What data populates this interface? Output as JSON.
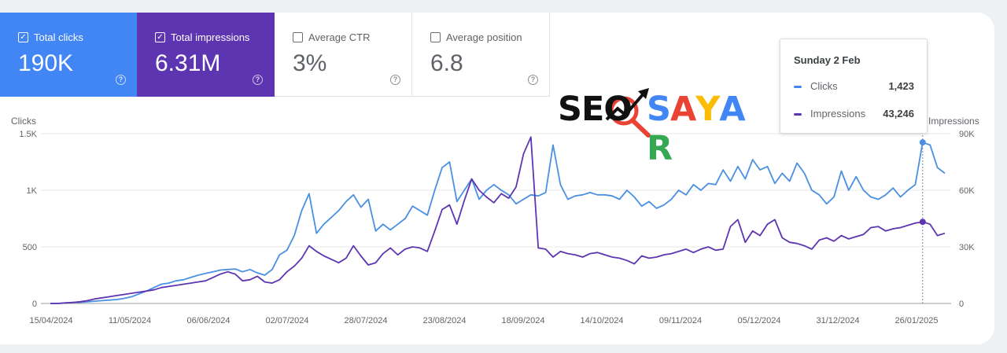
{
  "metrics": [
    {
      "label": "Total clicks",
      "value": "190K",
      "checked": true,
      "color": "#4285f4"
    },
    {
      "label": "Total impressions",
      "value": "6.31M",
      "checked": true,
      "color": "#5e35b1"
    },
    {
      "label": "Average CTR",
      "value": "3%",
      "checked": false
    },
    {
      "label": "Average position",
      "value": "6.8",
      "checked": false
    }
  ],
  "tooltip": {
    "date": "Sunday 2 Feb",
    "clicks_label": "Clicks",
    "clicks_value": "1,423",
    "impressions_label": "Impressions",
    "impressions_value": "43,246"
  },
  "logo": {
    "part1": "SEO",
    "part2": "SAYAR",
    "colors": [
      "#4285f4",
      "#ea4335",
      "#fbbc05",
      "#4285f4",
      "#34a853"
    ]
  },
  "chart_data": {
    "type": "line",
    "x_ticks": [
      "15/04/2024",
      "11/05/2024",
      "06/06/2024",
      "02/07/2024",
      "28/07/2024",
      "23/08/2024",
      "18/09/2024",
      "14/10/2024",
      "09/11/2024",
      "05/12/2024",
      "31/12/2024",
      "26/01/2025"
    ],
    "y_left_label": "Clicks",
    "y_left_ticks": [
      "0",
      "500",
      "1K",
      "1.5K"
    ],
    "y_left_lim": [
      0,
      1500
    ],
    "y_right_label": "Impressions",
    "y_right_ticks": [
      "0",
      "30K",
      "60K",
      "90K"
    ],
    "y_right_lim": [
      0,
      90000
    ],
    "grid": true,
    "series": [
      {
        "name": "Clicks",
        "axis": "left",
        "color": "#4a90e2",
        "values": [
          0,
          0,
          5,
          10,
          10,
          15,
          20,
          25,
          30,
          35,
          45,
          60,
          85,
          110,
          140,
          170,
          180,
          200,
          210,
          230,
          250,
          265,
          280,
          295,
          300,
          305,
          280,
          300,
          270,
          250,
          300,
          430,
          470,
          600,
          820,
          970,
          620,
          700,
          760,
          820,
          900,
          960,
          850,
          920,
          640,
          700,
          650,
          700,
          750,
          860,
          820,
          780,
          1000,
          1200,
          1250,
          900,
          1000,
          1100,
          920,
          1000,
          1050,
          1000,
          960,
          880,
          920,
          960,
          950,
          980,
          1400,
          1050,
          920,
          950,
          960,
          980,
          960,
          960,
          950,
          920,
          1000,
          940,
          860,
          900,
          840,
          870,
          920,
          1000,
          960,
          1050,
          1000,
          1060,
          1050,
          1180,
          1080,
          1210,
          1100,
          1270,
          1180,
          1210,
          1060,
          1150,
          1080,
          1240,
          1150,
          1000,
          960,
          880,
          940,
          1170,
          1000,
          1120,
          1000,
          940,
          920,
          960,
          1020,
          940,
          1000,
          1050,
          1423,
          1400,
          1200,
          1150
        ]
      },
      {
        "name": "Impressions",
        "axis": "right",
        "color": "#5e35b1",
        "values": [
          0,
          0,
          300,
          500,
          900,
          1500,
          2400,
          3000,
          3600,
          4200,
          4800,
          5400,
          6000,
          6600,
          7200,
          8400,
          9000,
          9600,
          10200,
          10800,
          11400,
          12000,
          13800,
          15600,
          16800,
          15600,
          12000,
          12600,
          14400,
          11400,
          10800,
          12600,
          16800,
          19800,
          24000,
          30600,
          27600,
          25200,
          23400,
          21600,
          24000,
          30600,
          25200,
          20400,
          21600,
          26400,
          29400,
          25800,
          28800,
          30000,
          29400,
          27600,
          38400,
          49800,
          52200,
          42000,
          54600,
          66000,
          60000,
          56400,
          53400,
          58200,
          55800,
          61800,
          79200,
          88200,
          29400,
          28800,
          24600,
          27600,
          26400,
          25800,
          24600,
          26400,
          27000,
          25800,
          24600,
          24000,
          22800,
          21000,
          25200,
          24000,
          24600,
          25800,
          26400,
          27600,
          28800,
          27000,
          28800,
          30000,
          28200,
          28800,
          40800,
          44400,
          32400,
          38400,
          36000,
          42000,
          44400,
          34800,
          32400,
          31800,
          30600,
          28800,
          33600,
          34800,
          33000,
          36000,
          34200,
          35400,
          36600,
          40200,
          40800,
          38400,
          39600,
          40200,
          41400,
          42600,
          43246,
          42000,
          36000,
          37200
        ]
      }
    ]
  }
}
